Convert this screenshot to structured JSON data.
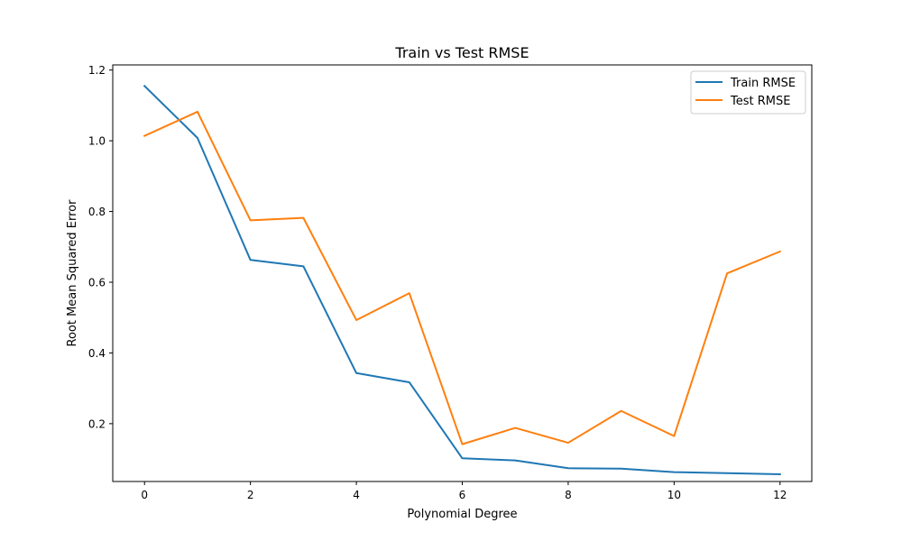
{
  "chart_data": {
    "type": "line",
    "title": "Train vs Test RMSE",
    "xlabel": "Polynomial Degree",
    "ylabel": "Root Mean Squared Error",
    "x": [
      0,
      1,
      2,
      3,
      4,
      5,
      6,
      7,
      8,
      9,
      10,
      11,
      12
    ],
    "xlim": [
      -0.6,
      12.6
    ],
    "ylim": [
      0.0365,
      1.2145
    ],
    "xticks": [
      0,
      2,
      4,
      6,
      8,
      10,
      12
    ],
    "yticks": [
      0.2,
      0.4,
      0.6,
      0.8,
      1.0,
      1.2
    ],
    "xtick_labels": [
      "0",
      "2",
      "4",
      "6",
      "8",
      "10",
      "12"
    ],
    "ytick_labels": [
      "0.2",
      "0.4",
      "0.6",
      "0.8",
      "1.0",
      "1.2"
    ],
    "grid": false,
    "legend_position": "top-right",
    "series": [
      {
        "name": "Train RMSE",
        "color": "#1f77b4",
        "values": [
          1.155,
          1.008,
          0.663,
          0.645,
          0.343,
          0.317,
          0.102,
          0.096,
          0.074,
          0.073,
          0.063,
          0.06,
          0.057
        ]
      },
      {
        "name": "Test RMSE",
        "color": "#ff7f0e",
        "values": [
          1.014,
          1.082,
          0.775,
          0.782,
          0.493,
          0.569,
          0.142,
          0.188,
          0.146,
          0.236,
          0.165,
          0.625,
          0.687
        ]
      }
    ]
  }
}
